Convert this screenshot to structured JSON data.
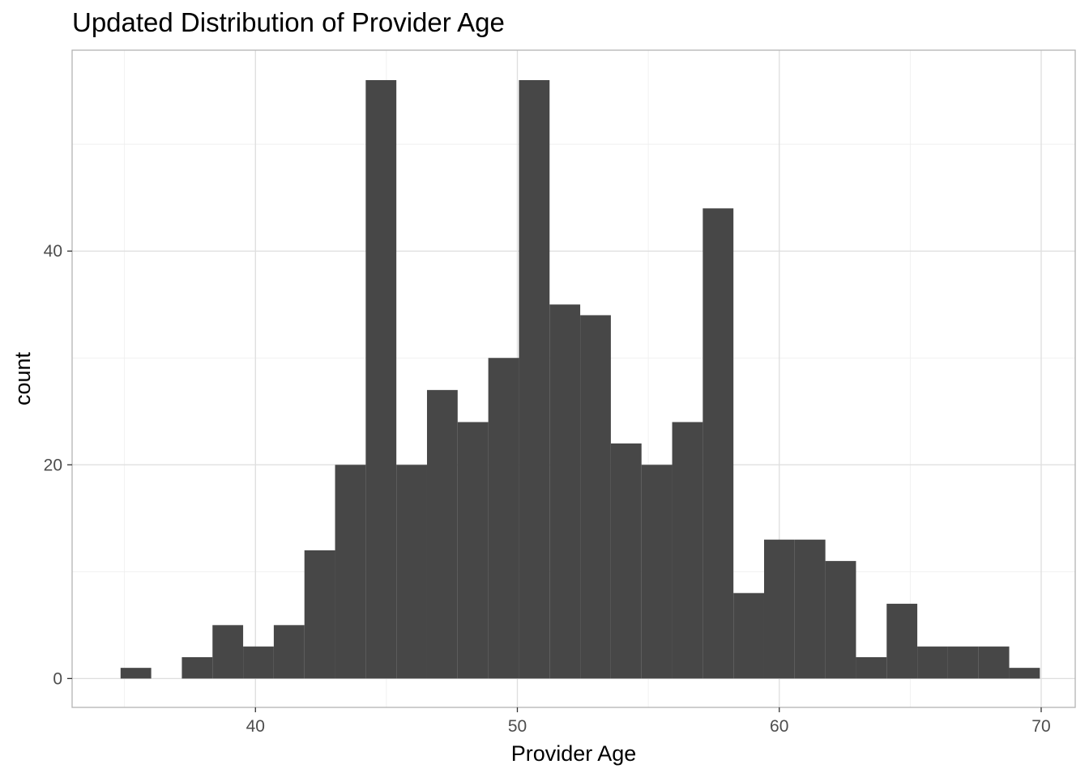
{
  "chart_data": {
    "type": "bar",
    "title": "Updated Distribution of Provider Age",
    "xlabel": "Provider Age",
    "ylabel": "count",
    "xlim": [
      33.0,
      71.3
    ],
    "ylim": [
      -2.7,
      58.8
    ],
    "x_ticks": [
      40,
      50,
      60,
      70
    ],
    "y_ticks": [
      0,
      20,
      40
    ],
    "x_tick_labels": [
      "40",
      "50",
      "60",
      "70"
    ],
    "y_tick_labels": [
      "0",
      "20",
      "40"
    ],
    "grid": true,
    "bin_width": 1.17,
    "bins": [
      {
        "x0": 34.85,
        "count": 1
      },
      {
        "x0": 36.02,
        "count": 0
      },
      {
        "x0": 37.19,
        "count": 2
      },
      {
        "x0": 38.36,
        "count": 5
      },
      {
        "x0": 39.53,
        "count": 3
      },
      {
        "x0": 40.7,
        "count": 5
      },
      {
        "x0": 41.87,
        "count": 12
      },
      {
        "x0": 43.04,
        "count": 20
      },
      {
        "x0": 44.21,
        "count": 56
      },
      {
        "x0": 45.38,
        "count": 20
      },
      {
        "x0": 46.55,
        "count": 27
      },
      {
        "x0": 47.72,
        "count": 24
      },
      {
        "x0": 48.89,
        "count": 30
      },
      {
        "x0": 50.06,
        "count": 56
      },
      {
        "x0": 51.23,
        "count": 35
      },
      {
        "x0": 52.4,
        "count": 34
      },
      {
        "x0": 53.57,
        "count": 22
      },
      {
        "x0": 54.74,
        "count": 20
      },
      {
        "x0": 55.91,
        "count": 24
      },
      {
        "x0": 57.08,
        "count": 44
      },
      {
        "x0": 58.25,
        "count": 8
      },
      {
        "x0": 59.42,
        "count": 13
      },
      {
        "x0": 60.59,
        "count": 13
      },
      {
        "x0": 61.76,
        "count": 11
      },
      {
        "x0": 62.93,
        "count": 2
      },
      {
        "x0": 64.1,
        "count": 7
      },
      {
        "x0": 65.27,
        "count": 3
      },
      {
        "x0": 66.44,
        "count": 3
      },
      {
        "x0": 67.61,
        "count": 3
      },
      {
        "x0": 68.78,
        "count": 1
      }
    ],
    "colors": {
      "bar": "#474747",
      "grid_major": "#dedede",
      "grid_minor": "#eeeeee",
      "panel_border": "#b3b3b3",
      "tick_label": "#4d4d4d"
    }
  }
}
